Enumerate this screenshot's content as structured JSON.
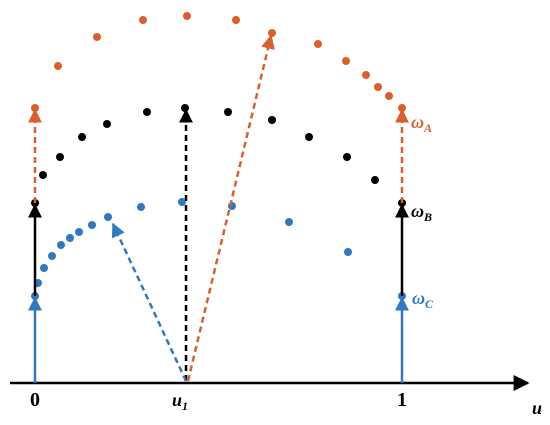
{
  "axis": {
    "label": "u",
    "ticks": [
      {
        "text": "0"
      },
      {
        "text": "u",
        "sub": "1"
      },
      {
        "text": "1"
      }
    ]
  },
  "curve_labels": [
    {
      "text": "ω",
      "sub": "A"
    },
    {
      "text": "ω",
      "sub": "B"
    },
    {
      "text": "ω",
      "sub": "C"
    }
  ]
}
